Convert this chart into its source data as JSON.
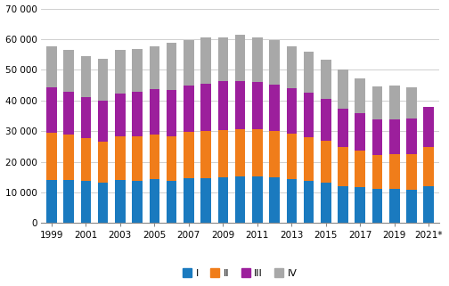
{
  "years": [
    1999,
    2000,
    2001,
    2002,
    2003,
    2004,
    2005,
    2006,
    2007,
    2008,
    2009,
    2010,
    2011,
    2012,
    2013,
    2014,
    2015,
    2016,
    2017,
    2018,
    2019,
    2020,
    2021
  ],
  "Q1": [
    14200,
    14100,
    13800,
    13200,
    14000,
    13800,
    14400,
    13700,
    14500,
    14500,
    15000,
    15100,
    15300,
    15000,
    14400,
    13800,
    13100,
    12000,
    11700,
    11100,
    11200,
    11000,
    12100
  ],
  "Q2": [
    15200,
    14800,
    13800,
    13500,
    14200,
    14400,
    14600,
    14600,
    15200,
    15600,
    15400,
    15500,
    15400,
    15000,
    14700,
    14200,
    13700,
    12800,
    11900,
    11200,
    11300,
    11400,
    12600
  ],
  "Q3": [
    14800,
    14000,
    13400,
    13200,
    14200,
    14500,
    14600,
    15100,
    15200,
    15500,
    15800,
    15800,
    15400,
    15200,
    14800,
    14500,
    13700,
    12600,
    12300,
    11400,
    11400,
    11700,
    13300
  ],
  "Q4": [
    13500,
    13700,
    13600,
    13600,
    14000,
    14000,
    14000,
    15500,
    14800,
    15100,
    14400,
    14900,
    14500,
    14500,
    13900,
    13400,
    12800,
    12600,
    11400,
    11000,
    11000,
    10300,
    0
  ],
  "colors": [
    "#1a7abf",
    "#f07d1a",
    "#9c1f9c",
    "#a8a8a8"
  ],
  "labels": [
    "I",
    "II",
    "III",
    "IV"
  ],
  "ylim": [
    0,
    70000
  ],
  "yticks": [
    0,
    10000,
    20000,
    30000,
    40000,
    50000,
    60000,
    70000
  ],
  "ytick_labels": [
    "0",
    "10 000",
    "20 000",
    "30 000",
    "40 000",
    "50 000",
    "60 000",
    "70 000"
  ],
  "background_color": "#ffffff",
  "grid_color": "#c8c8c8",
  "bar_width": 0.6
}
